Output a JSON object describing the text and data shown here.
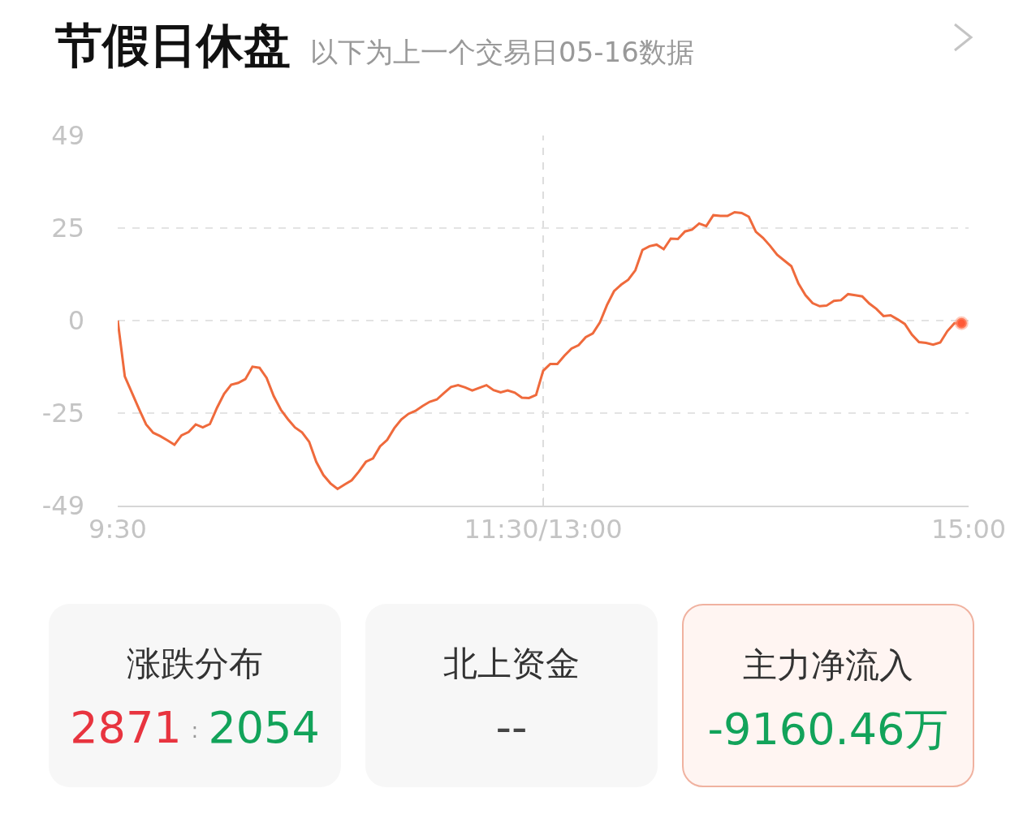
{
  "chart_data": [
    {
      "type": "line",
      "title": "节假日休盘",
      "subtitle": "以下为上一个交易日05-16数据",
      "categories": [
        "9:30",
        null,
        null,
        null,
        null,
        null,
        null,
        null,
        null,
        null,
        null,
        null,
        null,
        null,
        null,
        null,
        null,
        null,
        null,
        null,
        null,
        null,
        null,
        null,
        null,
        null,
        null,
        null,
        null,
        null,
        null,
        null,
        null,
        null,
        null,
        null,
        null,
        null,
        null,
        null,
        null,
        null,
        null,
        null,
        null,
        null,
        null,
        null,
        null,
        null,
        null,
        null,
        null,
        null,
        null,
        null,
        null,
        null,
        null,
        null,
        "11:30/13:00",
        null,
        null,
        null,
        null,
        null,
        null,
        null,
        null,
        null,
        null,
        null,
        null,
        null,
        null,
        null,
        null,
        null,
        null,
        null,
        null,
        null,
        null,
        null,
        null,
        null,
        null,
        null,
        null,
        null,
        null,
        null,
        null,
        null,
        null,
        null,
        null,
        null,
        null,
        null,
        null,
        null,
        null,
        null,
        null,
        null,
        null,
        null,
        null,
        null,
        null,
        null,
        null,
        null,
        null,
        null,
        null,
        null,
        null,
        null,
        "15:00"
      ],
      "ylim": [
        -49,
        49
      ],
      "yticks": [
        49,
        {
          "value": 24.5,
          "label": "25"
        },
        0,
        {
          "value": -24.5,
          "label": "-25"
        },
        -49
      ],
      "grid": "y",
      "line_style": "solid",
      "ref_lines": [
        {
          "axis": "x",
          "value": "11:30/13:00",
          "color": "#dddddd",
          "line_style": "dashed"
        }
      ],
      "series": [
        {
          "type": "line",
          "color": "#ef6a3c",
          "marker": "none",
          "values": [
            0,
            -14.8,
            -19.1,
            -23.4,
            -27.5,
            -29.7,
            -30.6,
            -31.7,
            -32.9,
            -30.4,
            -29.5,
            -27.5,
            -28.3,
            -27.4,
            -23.1,
            -19.4,
            -17.0,
            -16.5,
            -15.5,
            -12.2,
            -12.5,
            -15.2,
            -20.0,
            -23.6,
            -26.1,
            -28.3,
            -29.6,
            -32.1,
            -37.4,
            -40.9,
            -43.1,
            -44.6,
            -43.4,
            -42.3,
            -40.0,
            -37.4,
            -36.5,
            -33.3,
            -31.6,
            -28.5,
            -26.2,
            -24.7,
            -23.9,
            -22.6,
            -21.5,
            -20.9,
            -19.2,
            -17.6,
            -17.1,
            -17.7,
            -18.5,
            -17.8,
            -17.1,
            -18.4,
            -19.0,
            -18.5,
            -19.1,
            -20.4,
            -20.5,
            -19.7,
            -13.3,
            -11.5,
            -11.5,
            -9.3,
            -7.4,
            -6.5,
            -4.4,
            -3.4,
            -0.5,
            4.1,
            7.8,
            9.5,
            10.8,
            13.3,
            18.7,
            19.7,
            20.1,
            18.9,
            21.7,
            21.6,
            23.6,
            24.1,
            25.7,
            25.0,
            27.9,
            27.7,
            27.7,
            28.7,
            28.5,
            27.5,
            23.5,
            21.9,
            19.8,
            17.4,
            15.9,
            14.4,
            9.8,
            6.7,
            4.6,
            3.8,
            4.0,
            5.2,
            5.4,
            7.0,
            6.7,
            6.4,
            4.5,
            3.1,
            1.2,
            1.4,
            0.3,
            -0.9,
            -3.7,
            -5.7,
            -5.9,
            -6.4,
            -5.8,
            -2.8,
            -0.7,
            -0.7,
            null
          ]
        },
        {
          "type": "scatter",
          "color": "#ff5a36",
          "marker": "circle",
          "values": [
            null,
            null,
            null,
            null,
            null,
            null,
            null,
            null,
            null,
            null,
            null,
            null,
            null,
            null,
            null,
            null,
            null,
            null,
            null,
            null,
            null,
            null,
            null,
            null,
            null,
            null,
            null,
            null,
            null,
            null,
            null,
            null,
            null,
            null,
            null,
            null,
            null,
            null,
            null,
            null,
            null,
            null,
            null,
            null,
            null,
            null,
            null,
            null,
            null,
            null,
            null,
            null,
            null,
            null,
            null,
            null,
            null,
            null,
            null,
            null,
            null,
            null,
            null,
            null,
            null,
            null,
            null,
            null,
            null,
            null,
            null,
            null,
            null,
            null,
            null,
            null,
            null,
            null,
            null,
            null,
            null,
            null,
            null,
            null,
            null,
            null,
            null,
            null,
            null,
            null,
            null,
            null,
            null,
            null,
            null,
            null,
            null,
            null,
            null,
            null,
            null,
            null,
            null,
            null,
            null,
            null,
            null,
            null,
            null,
            null,
            null,
            null,
            null,
            null,
            null,
            null,
            null,
            null,
            null,
            -0.7,
            null
          ]
        }
      ]
    },
    {
      "type": "other",
      "annotations": [
        "涨跌分布",
        "2871",
        ":",
        "2054",
        "北上资金",
        "--",
        "主力净流入",
        "-9160.46万"
      ]
    }
  ]
}
